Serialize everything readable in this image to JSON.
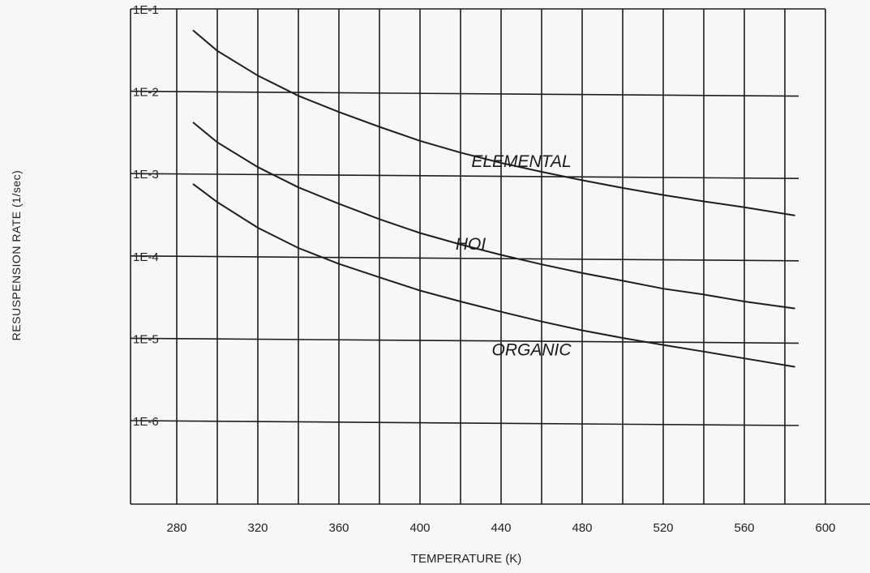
{
  "chart_data": {
    "type": "line",
    "title": "",
    "xlabel": "TEMPERATURE (K)",
    "ylabel": "RESUSPENSION RATE (1/sec)",
    "xlim": [
      260,
      620
    ],
    "ylim_log10": [
      -7,
      -1
    ],
    "y_scale": "log",
    "grid": true,
    "x_ticks": [
      280,
      320,
      360,
      400,
      440,
      480,
      520,
      560,
      600
    ],
    "y_ticks": [
      {
        "value": 0.1,
        "label": "1E-1"
      },
      {
        "value": 0.01,
        "label": "1E-2"
      },
      {
        "value": 0.001,
        "label": "1E-3"
      },
      {
        "value": 0.0001,
        "label": "1E-4"
      },
      {
        "value": 1e-05,
        "label": "1E-5"
      },
      {
        "value": 1e-06,
        "label": "1E-6"
      }
    ],
    "series": [
      {
        "name": "ELEMENTAL",
        "x": [
          288,
          300,
          320,
          340,
          360,
          380,
          400,
          420,
          440,
          460,
          480,
          500,
          520,
          540,
          560,
          585
        ],
        "y": [
          0.055,
          0.031,
          0.0155,
          0.0088,
          0.0056,
          0.0037,
          0.0025,
          0.0018,
          0.00135,
          0.00105,
          0.00083,
          0.00067,
          0.00055,
          0.00046,
          0.00039,
          0.00031
        ]
      },
      {
        "name": "HOI",
        "x": [
          288,
          300,
          320,
          340,
          360,
          380,
          400,
          420,
          440,
          460,
          480,
          500,
          520,
          540,
          560,
          585
        ],
        "y": [
          0.0042,
          0.0024,
          0.0012,
          0.00068,
          0.00043,
          0.00028,
          0.00019,
          0.000138,
          0.000103,
          7.9e-05,
          6.2e-05,
          5e-05,
          4e-05,
          3.4e-05,
          2.8e-05,
          2.3e-05
        ]
      },
      {
        "name": "ORGANIC",
        "x": [
          288,
          300,
          320,
          340,
          360,
          380,
          400,
          420,
          440,
          460,
          480,
          500,
          520,
          540,
          560,
          585
        ],
        "y": [
          0.00075,
          0.00045,
          0.00022,
          0.000125,
          8e-05,
          5.5e-05,
          3.8e-05,
          2.8e-05,
          2.1e-05,
          1.6e-05,
          1.25e-05,
          1.01e-05,
          8.3e-06,
          6.9e-06,
          5.7e-06,
          4.5e-06
        ]
      }
    ]
  }
}
